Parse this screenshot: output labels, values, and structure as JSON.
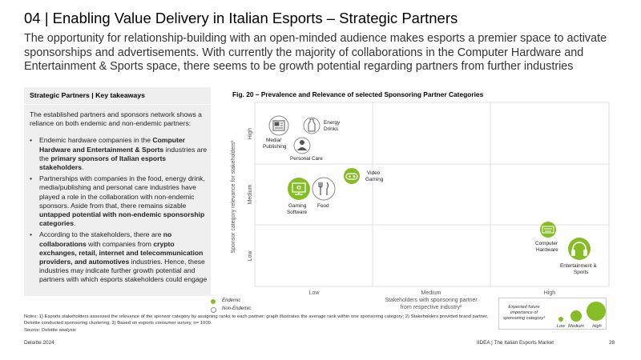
{
  "header": {
    "title": "04 | Enabling Value Delivery in Italian Esports – Strategic Partners",
    "subtitle": "The opportunity for relationship-building with an open-minded audience makes esports a premier space to activate sponsorships and advertisements. With currently the majority of collaborations in the Computer Hardware and Entertainment & Sports space, there seems to be growth potential regarding partners from further industries"
  },
  "takeaways": {
    "heading": "Strategic Partners | Key takeaways",
    "intro": "The established partners and sponsors network shows a reliance on both endemic and non-endemic partners:",
    "b1": {
      "p1": "Endemic hardware companies in the ",
      "s1": "Computer Hardware and Entertainment & Sports",
      "p2": " industries are the ",
      "s2": "primary sponsors of Italian esports stakeholders",
      "p3": "."
    },
    "b2": {
      "p1": "Partnerships with companies in the food, energy drink, media/publishing and personal care industries have played a role in the collaboration with non-endemic sponsors. Aside from that, there remains sizable ",
      "s1": "untapped potential with non-endemic sponsorship categories",
      "p2": "."
    },
    "b3": {
      "p1": "According to the stakeholders, there are ",
      "s1": "no collaborations",
      "p2": " with companies from ",
      "s2": "crypto exchanges, retail, internet and telecommunication providers, and automotives",
      "p3": " industries. Hence, these industries may indicate further growth potential and partners with which esports stakeholders could engage"
    }
  },
  "figure": {
    "title": "Fig. 20 – Prevalence and Relevance of selected Sponsoring Partner Categories",
    "y_axis_title": "Sponsor category relevance for stakeholders¹",
    "y_ticks": [
      "Low",
      "Medium",
      "High"
    ],
    "x_ticks": [
      "Low",
      "Medium",
      "High"
    ],
    "x_axis_title_1": "Stakeholders with sponsoring partner",
    "x_axis_title_2": "from respective industry²",
    "categories": {
      "media": [
        "Media/",
        "Publishing"
      ],
      "energy": [
        "Energy",
        "Drinks"
      ],
      "personal": "Personal Care",
      "video": [
        "Video",
        "Gaming"
      ],
      "gaming": [
        "Gaming",
        "Software"
      ],
      "food": "Food",
      "hardware": [
        "Computer",
        "Hardware"
      ],
      "entertainment": [
        "Entertainment &",
        "Sports"
      ]
    },
    "legend": {
      "endemic": "Endemic",
      "non_endemic": "Non-Endemic"
    },
    "size_legend": {
      "title_1": "Expected future",
      "title_2": "importance of",
      "title_3": "sponsoring category³",
      "low": "Low",
      "medium": "Medium",
      "high": "High"
    }
  },
  "chart_data": {
    "type": "scatter",
    "title": "Fig. 20 – Prevalence and Relevance of selected Sponsoring Partner Categories",
    "xlabel": "Stakeholders with sponsoring partner from respective industry²",
    "ylabel": "Sponsor category relevance for stakeholders¹",
    "x_ticks": [
      "Low",
      "Medium",
      "High"
    ],
    "y_ticks": [
      "Low",
      "Medium",
      "High"
    ],
    "grid": true,
    "series": [
      {
        "name": "Endemic",
        "points": [
          {
            "label": "Video Gaming",
            "x": "Low",
            "y": "Medium",
            "importance": "Low"
          },
          {
            "label": "Computer Hardware",
            "x": "High",
            "y": "Low",
            "importance": "Low"
          },
          {
            "label": "Entertainment & Sports",
            "x": "High",
            "y": "Low",
            "importance": "Medium"
          }
        ]
      },
      {
        "name": "Non-Endemic",
        "points": [
          {
            "label": "Media/Publishing",
            "x": "Low",
            "y": "High",
            "importance": "Medium"
          },
          {
            "label": "Energy Drinks",
            "x": "Low",
            "y": "High",
            "importance": "Low"
          },
          {
            "label": "Personal Care",
            "x": "Low",
            "y": "High",
            "importance": "Low"
          },
          {
            "label": "Gaming Software",
            "x": "Low",
            "y": "Medium",
            "importance": "Medium"
          },
          {
            "label": "Food",
            "x": "Low",
            "y": "Medium",
            "importance": "Medium"
          }
        ]
      }
    ]
  },
  "colors": {
    "endemic": "#86bc25",
    "non_endemic": "#ffffff",
    "grid": "#d9d9d9",
    "panel": "#efefef"
  },
  "notes": {
    "line1": "Notes: 1) Esports stakeholders assessed the relevance of the sponsor category by assigning ranks to each partner; graph illustrates the average rank within one sponsoring category; 2) Stakeholders provided brand partner, Deloitte conducted sponsoring clustering; 3) Based on esports consumer survey, n= 1000.",
    "line2": "Source: Deloitte analysis"
  },
  "footer": {
    "left": "Deloitte 2024",
    "right": "IIDEA | The Italian Esports Market",
    "page": "28"
  }
}
